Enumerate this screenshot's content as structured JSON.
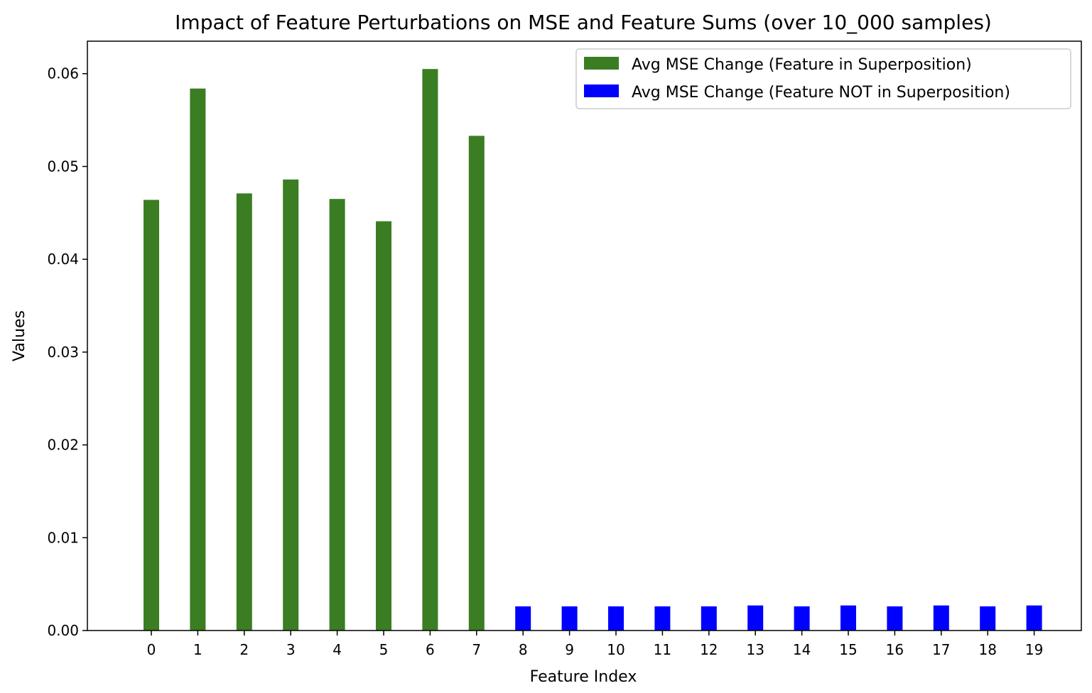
{
  "chart_data": {
    "type": "bar",
    "title": "Impact of Feature Perturbations on MSE and Feature Sums (over 10_000 samples)",
    "xlabel": "Feature Index",
    "ylabel": "Values",
    "ylim": [
      0,
      0.0635
    ],
    "yticks": [
      0.0,
      0.01,
      0.02,
      0.03,
      0.04,
      0.05,
      0.06
    ],
    "ytick_labels": [
      "0.00",
      "0.01",
      "0.02",
      "0.03",
      "0.04",
      "0.05",
      "0.06"
    ],
    "categories": [
      "0",
      "1",
      "2",
      "3",
      "4",
      "5",
      "6",
      "7",
      "8",
      "9",
      "10",
      "11",
      "12",
      "13",
      "14",
      "15",
      "16",
      "17",
      "18",
      "19"
    ],
    "grid": false,
    "legend_position": "top-right",
    "series": [
      {
        "name": "Avg MSE Change (Feature in Superposition)",
        "color": "#3a7d23",
        "values": [
          0.0464,
          0.0584,
          0.0471,
          0.0486,
          0.0465,
          0.0441,
          0.0605,
          0.0533,
          null,
          null,
          null,
          null,
          null,
          null,
          null,
          null,
          null,
          null,
          null,
          null
        ]
      },
      {
        "name": "Avg MSE Change (Feature NOT in Superposition)",
        "color": "#0000ff",
        "values": [
          null,
          null,
          null,
          null,
          null,
          null,
          null,
          null,
          0.0026,
          0.0026,
          0.0026,
          0.0026,
          0.0026,
          0.0027,
          0.0026,
          0.0027,
          0.0026,
          0.0027,
          0.0026,
          0.0027
        ]
      }
    ]
  }
}
